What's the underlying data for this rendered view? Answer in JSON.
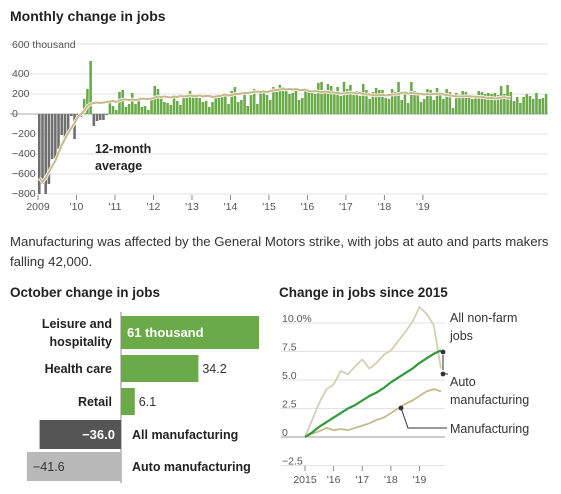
{
  "top_chart": {
    "title": "Monthly change in jobs",
    "unit_label": "600 thousand",
    "y_ticks": [
      400,
      200,
      0,
      -200,
      -400,
      -600,
      -800
    ],
    "x_ticks": [
      "2009",
      "'10",
      "'11",
      "'12",
      "'13",
      "'14",
      "'15",
      "'16",
      "'17",
      "'18",
      "'19"
    ],
    "annotation": [
      "12-month",
      "average"
    ]
  },
  "description": "Manufacturing was affected by the General Motors strike, with jobs at auto and parts makers falling 42,000.",
  "bar_chart": {
    "title": "October change in jobs",
    "rows": [
      {
        "label": "Leisure and hospitality",
        "value": 61,
        "value_label": "61 thousand"
      },
      {
        "label": "Health care",
        "value": 34.2,
        "value_label": "34.2"
      },
      {
        "label": "Retail",
        "value": 6.1,
        "value_label": "6.1"
      },
      {
        "label": "All manufacturing",
        "value": -36.0,
        "value_label": "−36.0"
      },
      {
        "label": "Auto manufacturing",
        "value": -41.6,
        "value_label": "−41.6"
      }
    ]
  },
  "line_chart": {
    "title": "Change in jobs since 2015",
    "y_ticks": [
      "10.0%",
      "7.5",
      "5.0",
      "2.5",
      "0",
      "−2.5"
    ],
    "x_ticks": [
      "2015",
      "'16",
      "'17",
      "'18",
      "'19"
    ],
    "legend": [
      {
        "lines": [
          "All non-farm",
          "jobs"
        ]
      },
      {
        "lines": [
          "Auto",
          "manufacturing"
        ]
      },
      {
        "lines": [
          "Manufacturing"
        ]
      }
    ]
  },
  "colors": {
    "bar_green": "#6aaa48",
    "average_line": "#c7b98a",
    "dark_green": "#2e9a3a",
    "dark_gray": "#555555",
    "light_gray": "#b9b9b9"
  },
  "chart_data": [
    {
      "type": "bar",
      "title": "Monthly change in jobs",
      "ylabel": "thousand",
      "ylim": [
        -850,
        600
      ],
      "x_start": "2009-01",
      "x_end": "2019-10",
      "values": [
        -800,
        -700,
        -800,
        -700,
        -450,
        -440,
        -350,
        -210,
        -260,
        -200,
        -20,
        -250,
        -40,
        -30,
        150,
        250,
        530,
        -120,
        -70,
        -60,
        -60,
        -10,
        130,
        80,
        40,
        220,
        240,
        70,
        100,
        210,
        100,
        130,
        70,
        80,
        40,
        160,
        280,
        250,
        180,
        120,
        110,
        90,
        160,
        130,
        90,
        160,
        170,
        230,
        180,
        180,
        160,
        120,
        130,
        70,
        120,
        180,
        160,
        180,
        190,
        100,
        230,
        270,
        120,
        140,
        210,
        80,
        190,
        250,
        100,
        220,
        220,
        190,
        140,
        270,
        220,
        290,
        270,
        250,
        200,
        210,
        250,
        140,
        160,
        240,
        220,
        210,
        200,
        310,
        320,
        210,
        300,
        280,
        220,
        270,
        180,
        320,
        250,
        290,
        190,
        230,
        180,
        300,
        240,
        150,
        220,
        260,
        240,
        240,
        160,
        150,
        250,
        220,
        320,
        140,
        200,
        110,
        320,
        230,
        200,
        120,
        150,
        250,
        240,
        140,
        260,
        220,
        150,
        250,
        220,
        60,
        210,
        180,
        230,
        220,
        170,
        150,
        180,
        230,
        220,
        200,
        210,
        200,
        210,
        190,
        280,
        200,
        290,
        220,
        130,
        170,
        110,
        170,
        200,
        180,
        150,
        210,
        150,
        160,
        200
      ],
      "series": [
        {
          "name": "12-month average",
          "values": [
            -640,
            -680,
            -640,
            -580,
            -520,
            -470,
            -390,
            -310,
            -250,
            -190,
            -140,
            -90,
            -30,
            0,
            30,
            80,
            100,
            110,
            115,
            110,
            115,
            120,
            125,
            130,
            120,
            135,
            145,
            145,
            140,
            145,
            140,
            145,
            155,
            150,
            150,
            155,
            165,
            175,
            170,
            175,
            170,
            165,
            175,
            170,
            180,
            175,
            180,
            185,
            180,
            180,
            185,
            175,
            180,
            180,
            170,
            175,
            180,
            185,
            195,
            185,
            190,
            200,
            200,
            205,
            210,
            210,
            215,
            220,
            225,
            220,
            225,
            220,
            230,
            235,
            240,
            245,
            250,
            245,
            250,
            245,
            250,
            240,
            240,
            245,
            230,
            225,
            230,
            225,
            220,
            225,
            220,
            215,
            215,
            210,
            205,
            205,
            210,
            215,
            210,
            205,
            210,
            200,
            195,
            195,
            190,
            185,
            190,
            190,
            185,
            190,
            195,
            195,
            200,
            210,
            215,
            205,
            210,
            205,
            205,
            200,
            195,
            200,
            195,
            200,
            200,
            205,
            195,
            190,
            185,
            180,
            175,
            178,
            175,
            177,
            178,
            175,
            173,
            172,
            170,
            165,
            160,
            160,
            155,
            160,
            165,
            168,
            162,
            160
          ]
        }
      ]
    },
    {
      "type": "bar",
      "title": "October change in jobs",
      "categories": [
        "Leisure and hospitality",
        "Health care",
        "Retail",
        "All manufacturing",
        "Auto manufacturing"
      ],
      "values": [
        61,
        34.2,
        6.1,
        -36.0,
        -41.6
      ],
      "ylabel": "thousand"
    },
    {
      "type": "line",
      "title": "Change in jobs since 2015",
      "ylabel": "%",
      "ylim": [
        -2.5,
        11
      ],
      "x": [
        2015.0,
        2015.25,
        2015.5,
        2015.75,
        2016.0,
        2016.25,
        2016.5,
        2016.75,
        2017.0,
        2017.25,
        2017.5,
        2017.75,
        2018.0,
        2018.25,
        2018.5,
        2018.75,
        2019.0,
        2019.25,
        2019.5,
        2019.75
      ],
      "series": [
        {
          "name": "All non-farm jobs",
          "values": [
            0,
            0.4,
            0.9,
            1.3,
            1.7,
            2.1,
            2.5,
            2.8,
            3.2,
            3.6,
            3.9,
            4.3,
            4.8,
            5.2,
            5.6,
            6.0,
            6.5,
            6.9,
            7.3,
            7.6
          ]
        },
        {
          "name": "Auto manufacturing",
          "values": [
            0,
            1.5,
            3.0,
            4.2,
            4.6,
            5.8,
            5.5,
            6.2,
            6.8,
            6.0,
            6.5,
            7.2,
            7.6,
            8.4,
            9.2,
            10.1,
            11.4,
            10.8,
            9.8,
            6.0
          ]
        },
        {
          "name": "Manufacturing",
          "values": [
            0,
            0.3,
            0.5,
            0.8,
            0.6,
            0.7,
            0.6,
            0.8,
            1.0,
            1.2,
            1.5,
            1.7,
            2.1,
            2.5,
            2.9,
            3.2,
            3.6,
            4.0,
            4.2,
            4.0
          ]
        }
      ]
    }
  ]
}
